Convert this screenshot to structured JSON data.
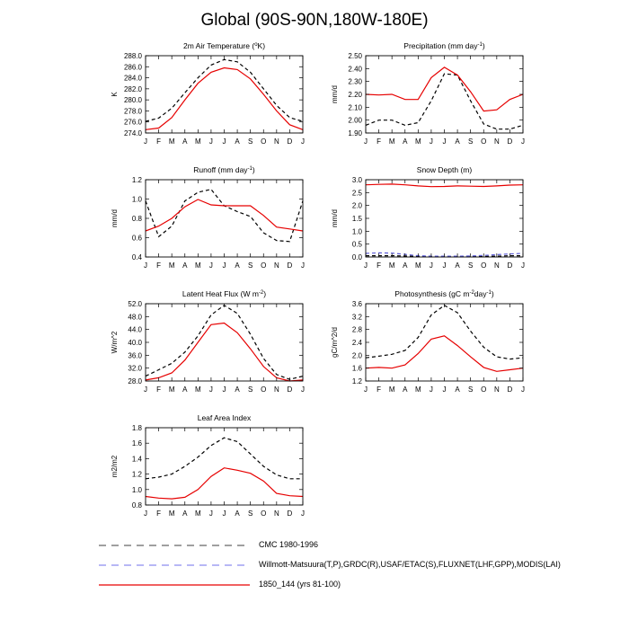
{
  "title": "Global (90S-90N,180W-180E)",
  "colors": {
    "obs": "#000000",
    "obs2": "#5c5cd6",
    "model": "#e60000",
    "legend_obs": "#666666"
  },
  "legend": [
    {
      "label": "CMC 1980-1996",
      "color": "#666666",
      "dash": "8,6"
    },
    {
      "label": "Willmott-Matsuura(T,P),GRDC(R),USAF/ETAC(S),FLUXNET(LHF,GPP),MODIS(LAI)",
      "color": "#8c8cf0",
      "dash": "8,6"
    },
    {
      "label": "1850_144 (yrs 81-100)",
      "color": "#e60000",
      "dash": ""
    }
  ],
  "chart_data": [
    {
      "type": "line",
      "title_parts": [
        "2m Air Temperature (",
        "o",
        "K)"
      ],
      "ylabel": "K",
      "ylim": [
        274,
        288
      ],
      "yticks": [
        "274.0",
        "276.0",
        "278.0",
        "280.0",
        "282.0",
        "284.0",
        "286.0",
        "288.0"
      ],
      "x": [
        "J",
        "F",
        "M",
        "A",
        "M",
        "J",
        "J",
        "A",
        "S",
        "O",
        "N",
        "D",
        "J"
      ],
      "series": [
        {
          "role": "obs",
          "values": [
            276.1,
            276.7,
            278.5,
            281.3,
            284.0,
            286.3,
            287.3,
            286.9,
            285.0,
            282.0,
            279.0,
            276.8,
            276.1
          ]
        },
        {
          "role": "model",
          "values": [
            274.6,
            274.9,
            276.8,
            280.0,
            283.0,
            285.0,
            285.8,
            285.5,
            283.8,
            281.0,
            278.0,
            275.5,
            274.6
          ]
        }
      ]
    },
    {
      "type": "line",
      "title_parts": [
        "Precipitation (mm day",
        "-1",
        ")"
      ],
      "ylabel": "mm/d",
      "ylim": [
        1.9,
        2.5
      ],
      "yticks": [
        "1.90",
        "2.00",
        "2.10",
        "2.20",
        "2.30",
        "2.40",
        "2.50"
      ],
      "x": [
        "J",
        "F",
        "M",
        "A",
        "M",
        "J",
        "J",
        "A",
        "S",
        "O",
        "N",
        "D",
        "J"
      ],
      "series": [
        {
          "role": "obs",
          "values": [
            1.96,
            2.0,
            2.0,
            1.96,
            1.98,
            2.15,
            2.36,
            2.35,
            2.15,
            1.97,
            1.93,
            1.93,
            1.96
          ]
        },
        {
          "role": "model",
          "values": [
            2.2,
            2.195,
            2.2,
            2.16,
            2.16,
            2.33,
            2.41,
            2.35,
            2.22,
            2.07,
            2.08,
            2.16,
            2.2
          ]
        }
      ]
    },
    {
      "type": "line",
      "title_parts": [
        "Runoff (mm day",
        "-1",
        ")"
      ],
      "ylabel": "mm/d",
      "ylim": [
        0.4,
        1.2
      ],
      "yticks": [
        "0.4",
        "0.6",
        "0.8",
        "1.0",
        "1.2"
      ],
      "x": [
        "J",
        "F",
        "M",
        "A",
        "M",
        "J",
        "J",
        "A",
        "S",
        "O",
        "N",
        "D",
        "J"
      ],
      "series": [
        {
          "role": "obs",
          "values": [
            0.98,
            0.61,
            0.72,
            0.98,
            1.07,
            1.1,
            0.93,
            0.87,
            0.82,
            0.65,
            0.57,
            0.56,
            0.98
          ]
        },
        {
          "role": "model",
          "values": [
            0.67,
            0.72,
            0.8,
            0.92,
            0.995,
            0.94,
            0.93,
            0.93,
            0.93,
            0.83,
            0.71,
            0.69,
            0.67
          ]
        }
      ]
    },
    {
      "type": "line",
      "title_parts": [
        "Snow Depth (m)"
      ],
      "ylabel": "mm/d",
      "ylim": [
        0.0,
        3.0
      ],
      "yticks": [
        "0.0",
        "0.5",
        "1.0",
        "1.5",
        "2.0",
        "2.5",
        "3.0"
      ],
      "x": [
        "J",
        "F",
        "M",
        "A",
        "M",
        "J",
        "J",
        "A",
        "S",
        "O",
        "N",
        "D",
        "J"
      ],
      "series": [
        {
          "role": "obs",
          "values": [
            0.05,
            0.05,
            0.05,
            0.04,
            0.02,
            0.01,
            0.01,
            0.01,
            0.01,
            0.02,
            0.03,
            0.05,
            0.05
          ]
        },
        {
          "role": "obs2",
          "values": [
            0.14,
            0.16,
            0.15,
            0.1,
            0.05,
            0.03,
            0.03,
            0.03,
            0.04,
            0.06,
            0.09,
            0.12,
            0.14
          ]
        },
        {
          "role": "model",
          "values": [
            2.8,
            2.82,
            2.83,
            2.8,
            2.76,
            2.73,
            2.74,
            2.76,
            2.75,
            2.74,
            2.76,
            2.79,
            2.8
          ]
        }
      ]
    },
    {
      "type": "line",
      "title_parts": [
        "Latent Heat Flux (W m",
        "-2",
        ")"
      ],
      "ylabel": "W/m^2",
      "ylim": [
        28,
        52
      ],
      "yticks": [
        "28.0",
        "32.0",
        "36.0",
        "40.0",
        "44.0",
        "48.0",
        "52.0"
      ],
      "x": [
        "J",
        "F",
        "M",
        "A",
        "M",
        "J",
        "J",
        "A",
        "S",
        "O",
        "N",
        "D",
        "J"
      ],
      "series": [
        {
          "role": "obs",
          "values": [
            29.5,
            31.5,
            33.5,
            37.0,
            42.0,
            48.5,
            51.5,
            49.0,
            42.5,
            35.0,
            30.0,
            28.5,
            29.5
          ]
        },
        {
          "role": "model",
          "values": [
            28.3,
            29.0,
            30.5,
            34.5,
            40.0,
            45.5,
            46.0,
            43.0,
            38.0,
            32.5,
            29.0,
            28.0,
            28.3
          ]
        }
      ]
    },
    {
      "type": "line",
      "title_parts": [
        "Photosynthesis (gC m",
        "-2",
        "day",
        "-1",
        ")"
      ],
      "ylabel": "gC/m^2/d",
      "ylim": [
        1.2,
        3.6
      ],
      "yticks": [
        "1.2",
        "1.6",
        "2.0",
        "2.4",
        "2.8",
        "3.2",
        "3.6"
      ],
      "x": [
        "J",
        "F",
        "M",
        "A",
        "M",
        "J",
        "J",
        "A",
        "S",
        "O",
        "N",
        "D",
        "J"
      ],
      "series": [
        {
          "role": "obs",
          "values": [
            1.92,
            1.97,
            2.03,
            2.15,
            2.55,
            3.25,
            3.55,
            3.32,
            2.75,
            2.25,
            1.95,
            1.88,
            1.92
          ]
        },
        {
          "role": "model",
          "values": [
            1.6,
            1.62,
            1.6,
            1.7,
            2.05,
            2.5,
            2.6,
            2.3,
            1.95,
            1.62,
            1.5,
            1.55,
            1.6
          ]
        }
      ]
    },
    {
      "type": "line",
      "title_parts": [
        "Leaf Area Index"
      ],
      "ylabel": "m2/m2",
      "ylim": [
        0.8,
        1.8
      ],
      "yticks": [
        "0.8",
        "1.0",
        "1.2",
        "1.4",
        "1.6",
        "1.8"
      ],
      "x": [
        "J",
        "F",
        "M",
        "A",
        "M",
        "J",
        "J",
        "A",
        "S",
        "O",
        "N",
        "D",
        "J"
      ],
      "series": [
        {
          "role": "obs",
          "values": [
            1.14,
            1.16,
            1.2,
            1.3,
            1.42,
            1.57,
            1.67,
            1.62,
            1.46,
            1.3,
            1.19,
            1.14,
            1.14
          ]
        },
        {
          "role": "model",
          "values": [
            0.91,
            0.89,
            0.88,
            0.9,
            1.0,
            1.17,
            1.28,
            1.25,
            1.21,
            1.11,
            0.95,
            0.92,
            0.91
          ]
        }
      ]
    }
  ]
}
